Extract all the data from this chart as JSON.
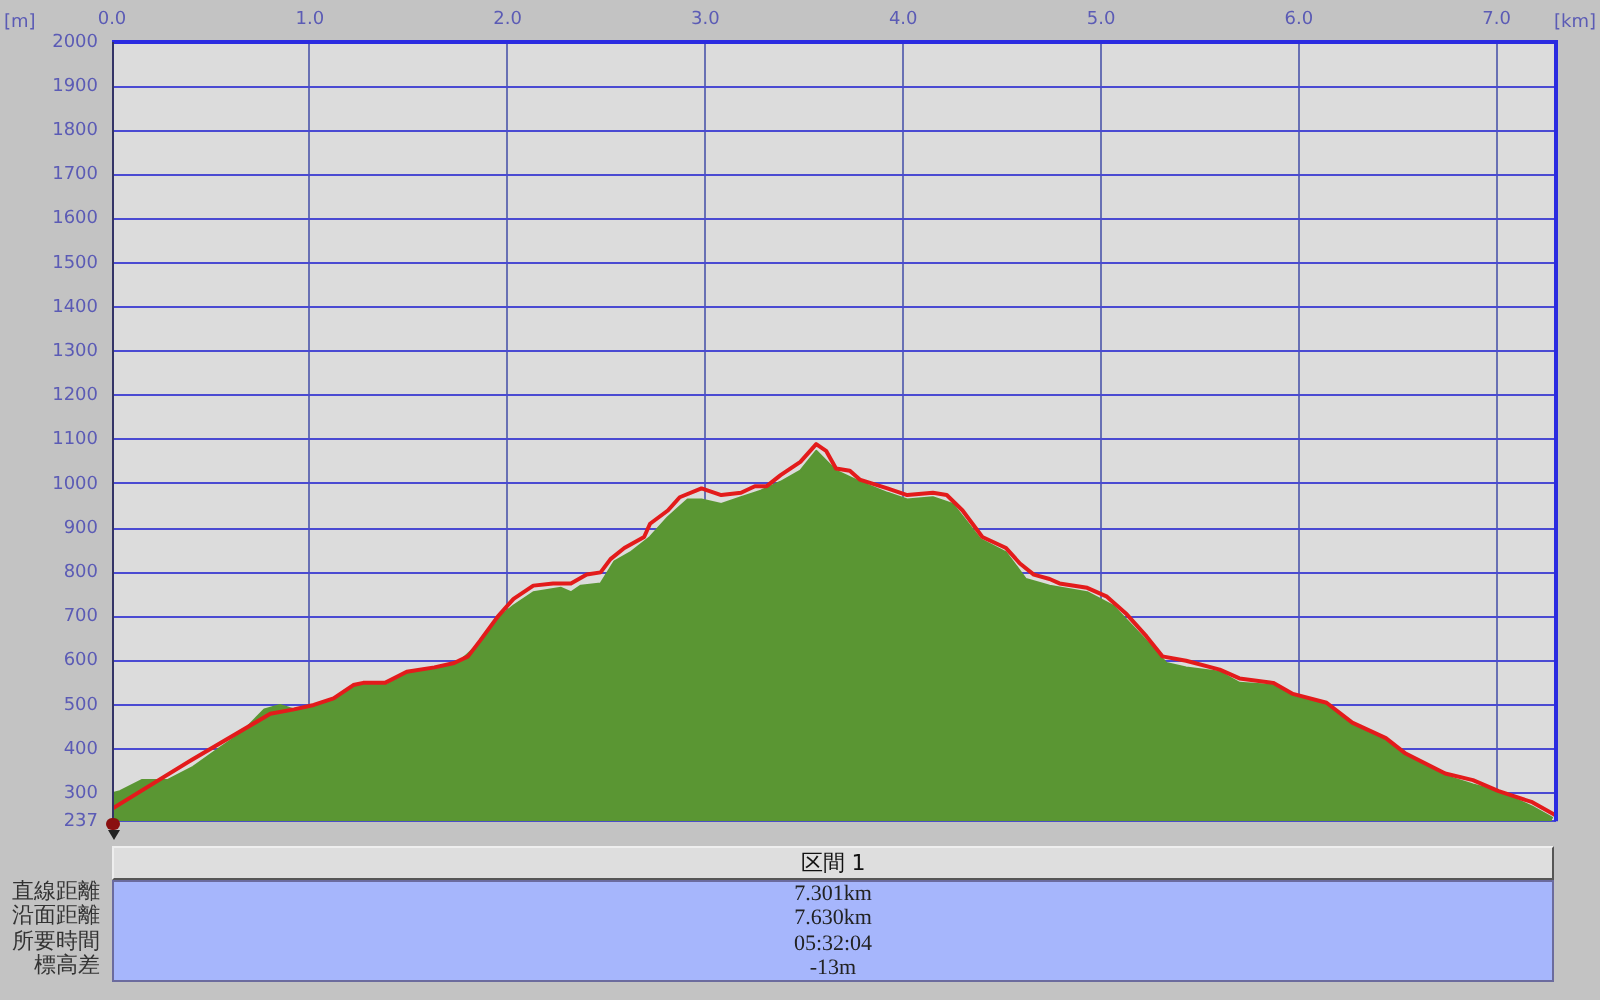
{
  "chart_data": {
    "type": "line",
    "xlabel": "[km]",
    "ylabel": "[m]",
    "xlim": [
      0,
      7.3
    ],
    "xticks": [
      {
        "value": 0,
        "label": "0.0"
      },
      {
        "value": 1,
        "label": "1.0"
      },
      {
        "value": 2,
        "label": "2.0"
      },
      {
        "value": 3,
        "label": "3.0"
      },
      {
        "value": 4,
        "label": "4.0"
      },
      {
        "value": 5,
        "label": "5.0"
      },
      {
        "value": 6,
        "label": "6.0"
      },
      {
        "value": 7,
        "label": "7.0"
      }
    ],
    "ylim": [
      237,
      2000
    ],
    "yticks": [
      237,
      300,
      400,
      500,
      600,
      700,
      800,
      900,
      1000,
      1100,
      1200,
      1300,
      1400,
      1500,
      1600,
      1700,
      1800,
      1900,
      2000
    ],
    "grid": true,
    "series": [
      {
        "type": "area",
        "color": "#5a9633",
        "x": [
          0,
          0.04,
          0.15,
          0.28,
          0.41,
          0.52,
          0.65,
          0.77,
          0.85,
          0.92,
          1.02,
          1.12,
          1.22,
          1.39,
          1.49,
          1.63,
          1.76,
          1.86,
          1.96,
          2.03,
          2.13,
          2.27,
          2.32,
          2.37,
          2.47,
          2.54,
          2.62,
          2.72,
          2.81,
          2.91,
          2.98,
          3.08,
          3.18,
          3.28,
          3.38,
          3.48,
          3.56,
          3.66,
          3.78,
          3.92,
          4.02,
          4.15,
          4.25,
          4.39,
          4.52,
          4.62,
          4.74,
          4.93,
          5.06,
          5.23,
          5.33,
          5.43,
          5.6,
          5.7,
          5.87,
          5.97,
          6.14,
          6.27,
          6.44,
          6.58,
          6.74,
          6.88,
          7.01,
          7.18,
          7.28
        ],
        "values": [
          300,
          305,
          330,
          330,
          360,
          395,
          435,
          490,
          500,
          490,
          500,
          515,
          545,
          545,
          575,
          580,
          600,
          640,
          700,
          725,
          755,
          765,
          755,
          770,
          775,
          825,
          845,
          880,
          925,
          965,
          965,
          955,
          970,
          985,
          1005,
          1030,
          1075,
          1030,
          1005,
          980,
          965,
          970,
          955,
          875,
          845,
          785,
          770,
          755,
          725,
          645,
          595,
          585,
          575,
          550,
          545,
          520,
          500,
          455,
          420,
          380,
          340,
          320,
          305,
          270,
          245
        ]
      },
      {
        "type": "line",
        "color": "#e31b1b",
        "x": [
          0,
          0.4,
          0.8,
          0.92,
          1.02,
          1.12,
          1.22,
          1.27,
          1.38,
          1.49,
          1.63,
          1.73,
          1.8,
          1.86,
          1.95,
          2.03,
          2.13,
          2.23,
          2.32,
          2.4,
          2.47,
          2.52,
          2.59,
          2.69,
          2.72,
          2.81,
          2.87,
          2.98,
          3.08,
          3.18,
          3.25,
          3.31,
          3.38,
          3.48,
          3.56,
          3.61,
          3.66,
          3.73,
          3.78,
          3.92,
          4.02,
          4.15,
          4.22,
          4.3,
          4.4,
          4.52,
          4.59,
          4.66,
          4.74,
          4.79,
          4.93,
          5.03,
          5.13,
          5.23,
          5.31,
          5.43,
          5.6,
          5.7,
          5.87,
          5.97,
          6.14,
          6.27,
          6.44,
          6.54,
          6.74,
          6.88,
          7.01,
          7.18,
          7.3
        ],
        "values": [
          265,
          375,
          480,
          490,
          500,
          515,
          545,
          550,
          550,
          575,
          585,
          595,
          610,
          645,
          700,
          740,
          770,
          775,
          775,
          795,
          800,
          830,
          855,
          880,
          910,
          940,
          970,
          990,
          975,
          980,
          995,
          995,
          1020,
          1050,
          1090,
          1075,
          1035,
          1030,
          1010,
          990,
          975,
          980,
          975,
          940,
          880,
          855,
          820,
          795,
          785,
          775,
          765,
          745,
          705,
          655,
          610,
          600,
          580,
          560,
          550,
          525,
          505,
          460,
          425,
          390,
          345,
          330,
          305,
          280,
          250
        ]
      }
    ],
    "annotations": [
      "区間 1",
      "直線距離",
      "7.301km",
      "沿面距離",
      "7.630km",
      "所要時間",
      "05:32:04",
      "標高差",
      "-13m"
    ]
  }
}
